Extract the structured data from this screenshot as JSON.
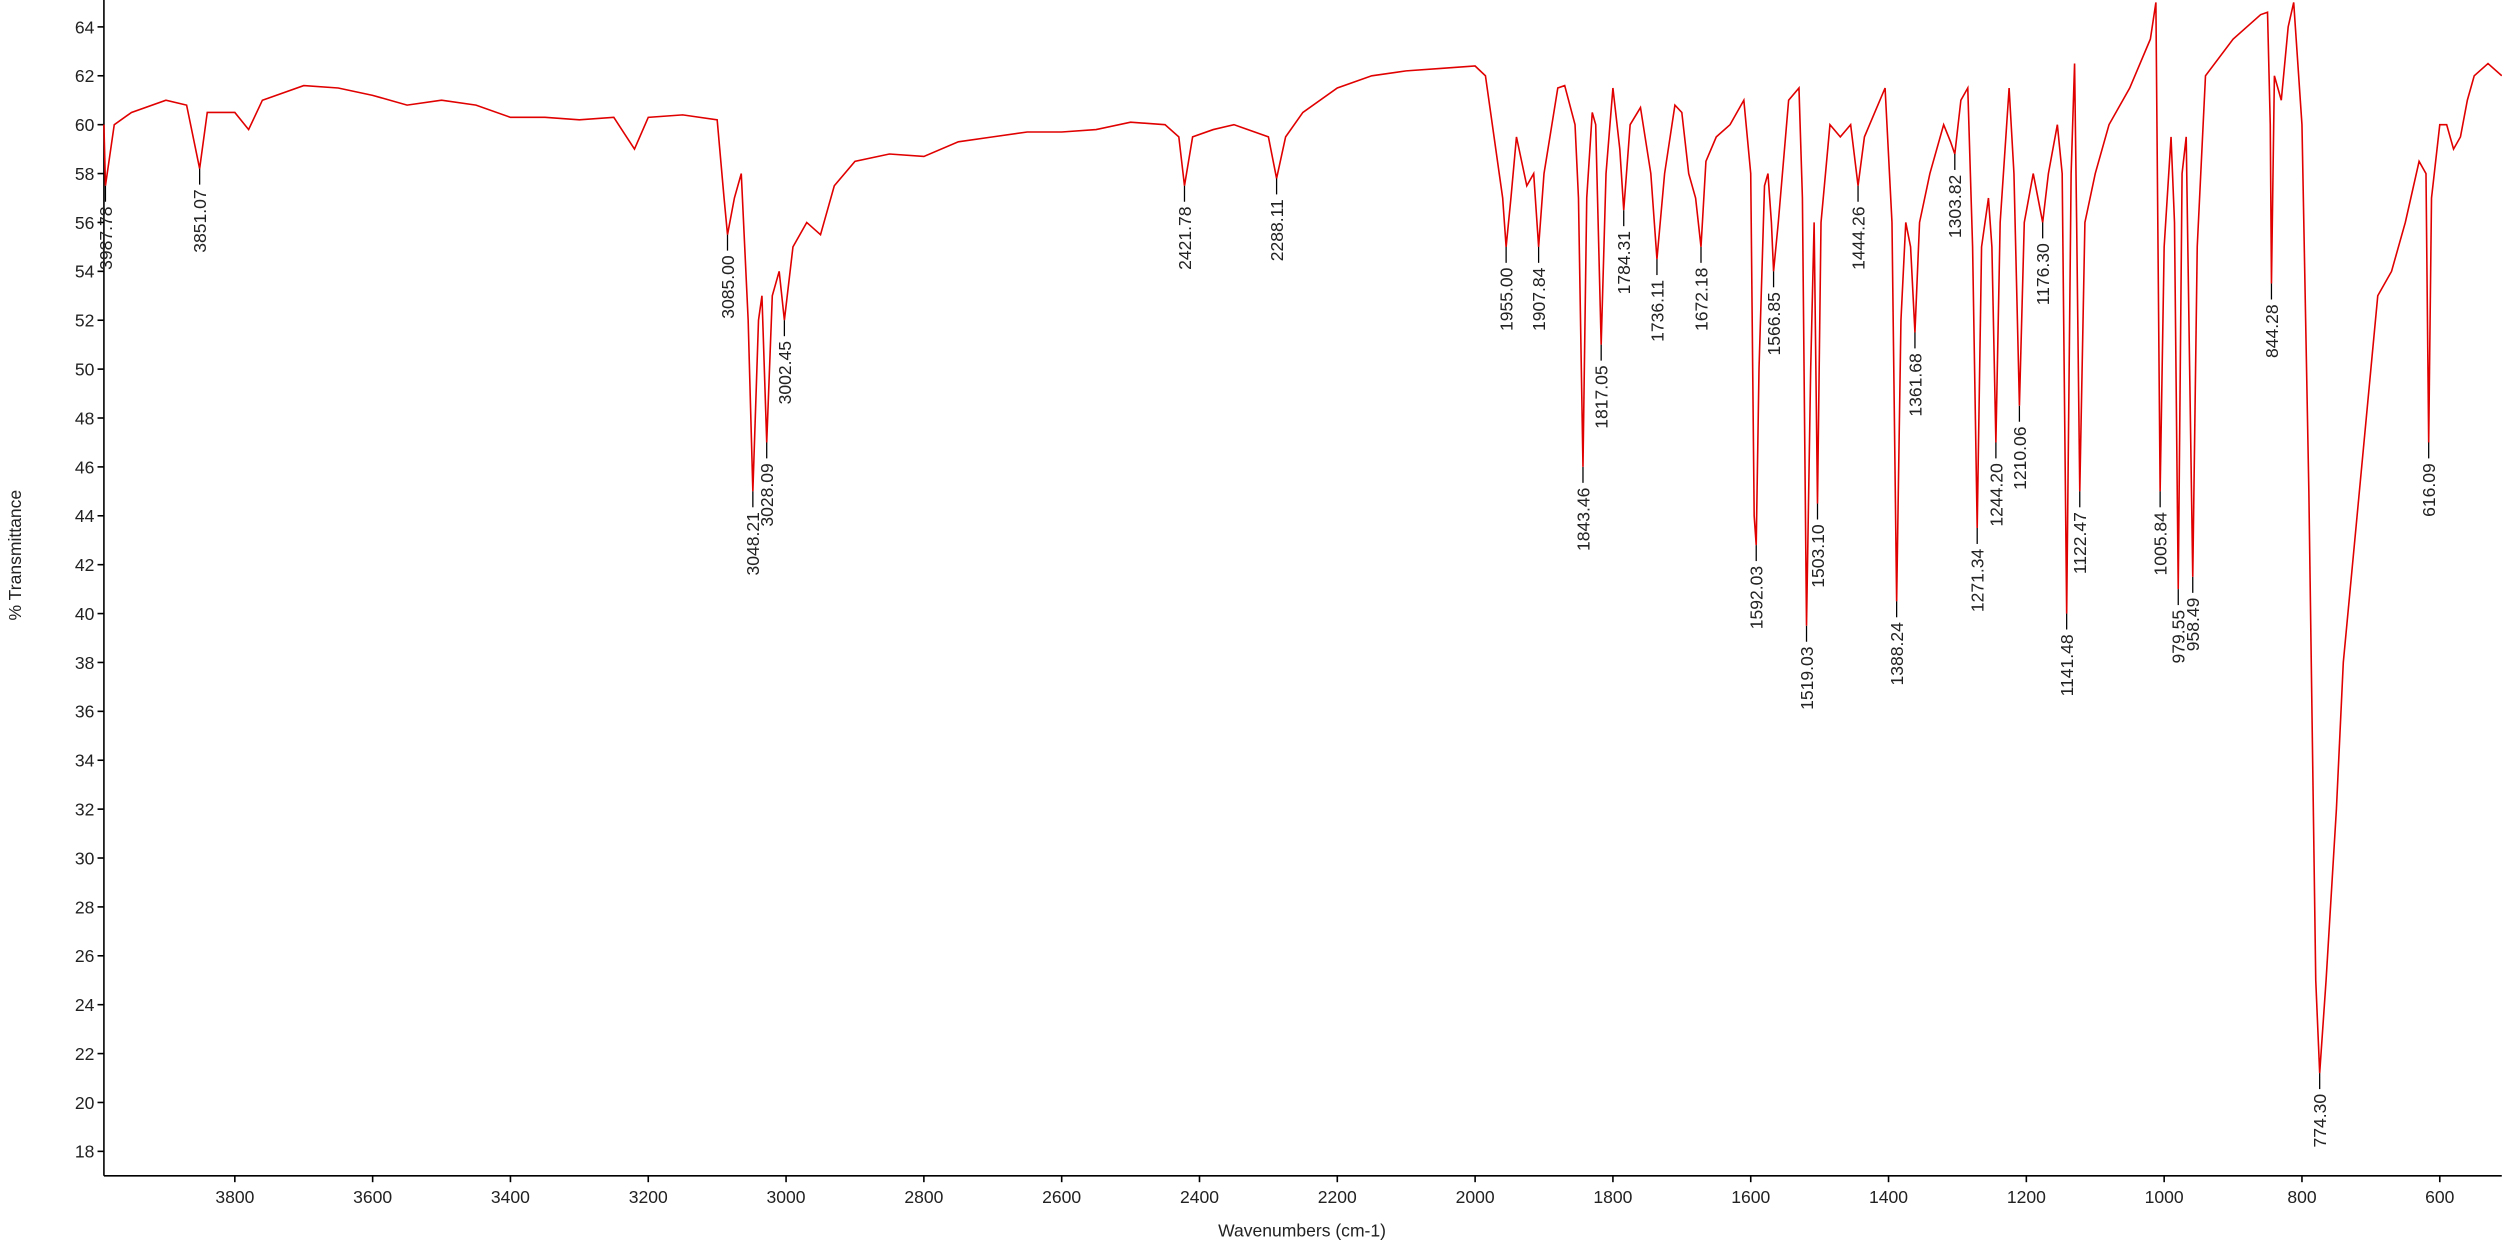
{
  "chart_data": {
    "type": "line",
    "xlabel": "Wavenumbers (cm-1)",
    "ylabel": "% Transmittance",
    "xlim": [
      3990,
      510
    ],
    "ylim": [
      17,
      65.1
    ],
    "xticks": [
      3800,
      3600,
      3400,
      3200,
      3000,
      2800,
      2600,
      2400,
      2200,
      2000,
      1800,
      1600,
      1400,
      1200,
      1000,
      800,
      600
    ],
    "yticks": [
      18,
      20,
      22,
      24,
      26,
      28,
      30,
      32,
      34,
      36,
      38,
      40,
      42,
      44,
      46,
      48,
      50,
      52,
      54,
      56,
      58,
      60,
      62,
      64
    ],
    "x": [
      3990,
      3987.78,
      3975,
      3950,
      3900,
      3870,
      3851.07,
      3840,
      3800,
      3780,
      3760,
      3700,
      3650,
      3600,
      3550,
      3500,
      3450,
      3400,
      3350,
      3300,
      3250,
      3220,
      3200,
      3150,
      3100,
      3090,
      3085,
      3075,
      3065,
      3055,
      3048.21,
      3040,
      3035,
      3028.09,
      3020,
      3010,
      3002.45,
      2990,
      2970,
      2950,
      2930,
      2900,
      2850,
      2800,
      2750,
      2700,
      2650,
      2600,
      2550,
      2500,
      2450,
      2430,
      2421.78,
      2410,
      2380,
      2350,
      2300,
      2288.11,
      2275,
      2250,
      2200,
      2150,
      2100,
      2050,
      2000,
      1985,
      1970,
      1960,
      1955,
      1948,
      1940,
      1925,
      1915,
      1907.84,
      1900,
      1880,
      1870,
      1855,
      1850,
      1843.46,
      1838,
      1830,
      1825,
      1817.05,
      1810,
      1800,
      1790,
      1784.31,
      1775,
      1760,
      1745,
      1736.11,
      1725,
      1710,
      1700,
      1690,
      1680,
      1672.18,
      1665,
      1650,
      1630,
      1610,
      1600,
      1595,
      1592.03,
      1588,
      1580,
      1575,
      1570,
      1566.85,
      1560,
      1545,
      1530,
      1525,
      1519.03,
      1513,
      1508,
      1503.1,
      1498,
      1485,
      1470,
      1455,
      1444.26,
      1435,
      1420,
      1405,
      1395,
      1388.24,
      1382,
      1375,
      1368,
      1361.68,
      1355,
      1340,
      1320,
      1310,
      1303.82,
      1295,
      1285,
      1278,
      1271.34,
      1265,
      1255,
      1250,
      1244.2,
      1238,
      1225,
      1218,
      1210.06,
      1203,
      1190,
      1176.3,
      1168,
      1155,
      1148,
      1141.48,
      1135,
      1130,
      1127,
      1122.47,
      1115,
      1100,
      1080,
      1050,
      1020,
      1012,
      1005.84,
      1000,
      990,
      985,
      979.55,
      974,
      968,
      963,
      958.49,
      952,
      940,
      900,
      860,
      850,
      846,
      844.28,
      840,
      830,
      820,
      812,
      800,
      790,
      780,
      774.3,
      765,
      750,
      740,
      720,
      700,
      690,
      670,
      650,
      630,
      620,
      616.09,
      612,
      600,
      590,
      580,
      570,
      560,
      550,
      530,
      510
    ],
    "series": [
      {
        "name": "spectrum",
        "color": "#e00000",
        "values": [
          60,
          57.5,
          60,
          60.5,
          61,
          60.8,
          58.2,
          60.5,
          60.5,
          59.8,
          61,
          61.6,
          61.5,
          61.2,
          60.8,
          61,
          60.8,
          60.3,
          60.3,
          60.2,
          60.3,
          59,
          60.3,
          60.4,
          60.2,
          57,
          55.5,
          57,
          58,
          52,
          45,
          52,
          53,
          47,
          53,
          54,
          52,
          55,
          56,
          55.5,
          57.5,
          58.5,
          58.8,
          58.7,
          59.3,
          59.5,
          59.7,
          59.7,
          59.8,
          60.1,
          60,
          59.5,
          57.5,
          59.5,
          59.8,
          60,
          59.5,
          57.8,
          59.5,
          60.5,
          61.5,
          62,
          62.2,
          62.3,
          62.4,
          62,
          59,
          57,
          55,
          57,
          59.5,
          57.5,
          58,
          55,
          58,
          61.5,
          61.6,
          60,
          57,
          46,
          57,
          60.5,
          60,
          51,
          58,
          61.5,
          59,
          56.5,
          60,
          60.7,
          58,
          54.5,
          58,
          60.8,
          60.5,
          58,
          57,
          55,
          58.5,
          59.5,
          60,
          61,
          58,
          44,
          42.8,
          50,
          57.5,
          58,
          56,
          54,
          56,
          61,
          61.5,
          57,
          39.5,
          50,
          56,
          44.5,
          56,
          60,
          59.5,
          60,
          57.5,
          59.5,
          60.5,
          61.5,
          56,
          40.5,
          52,
          56,
          55,
          51.5,
          56,
          58,
          60,
          59.3,
          58.8,
          61,
          61.5,
          55,
          43.5,
          55,
          57,
          55,
          47,
          56,
          61.5,
          58,
          48.5,
          56,
          58,
          56,
          58,
          60,
          58,
          40,
          58,
          62.5,
          56,
          45,
          56,
          58,
          60,
          61.5,
          63.5,
          65,
          45,
          55,
          59.5,
          56,
          41,
          58,
          59.5,
          50,
          41.5,
          55,
          62,
          63.5,
          64.5,
          64.6,
          60,
          53.5,
          62,
          61,
          64,
          65,
          60,
          45,
          25,
          21.2,
          25,
          32,
          38,
          44,
          50,
          53,
          54,
          56,
          58.5,
          58,
          47,
          57,
          60,
          60,
          59,
          59.5,
          61,
          62,
          62.5,
          62
        ]
      }
    ],
    "peaks": {
      "x": [
        3987.78,
        3851.07,
        3085,
        3048.21,
        3028.09,
        3002.45,
        2421.78,
        2288.11,
        1955,
        1907.84,
        1843.46,
        1817.05,
        1784.31,
        1736.11,
        1672.18,
        1592.03,
        1566.85,
        1519.03,
        1503.1,
        1444.26,
        1388.24,
        1361.68,
        1303.82,
        1271.34,
        1244.2,
        1210.06,
        1176.3,
        1141.48,
        1122.47,
        1005.84,
        979.55,
        958.49,
        844.28,
        774.3,
        616.09
      ],
      "y": [
        57.5,
        58.2,
        55.5,
        45,
        47,
        52,
        57.5,
        57.8,
        55,
        55,
        46,
        51,
        56.5,
        54.5,
        55,
        42.8,
        54,
        39.5,
        44.5,
        57.5,
        40.5,
        51.5,
        58.8,
        43.5,
        47,
        48.5,
        56,
        40,
        45,
        45,
        41,
        41.5,
        53.5,
        21.2,
        47
      ],
      "value_labels": [
        "3987.78",
        "3851.07",
        "3085.00",
        "3048.21",
        "3028.09",
        "3002.45",
        "2421.78",
        "2288.11",
        "1955.00",
        "1907.84",
        "1843.46",
        "1817.05",
        "1784.31",
        "1736.11",
        "1672.18",
        "1592.03",
        "1566.85",
        "1519.03",
        "1503.10",
        "1444.26",
        "1388.24",
        "1361.68",
        "1303.82",
        "1271.34",
        "1244.20",
        "1210.06",
        "1176.30",
        "1141.48",
        "1122.47",
        "1005.84",
        "979.55",
        "958.49",
        "844.28",
        "774.30",
        "616.09"
      ]
    }
  }
}
